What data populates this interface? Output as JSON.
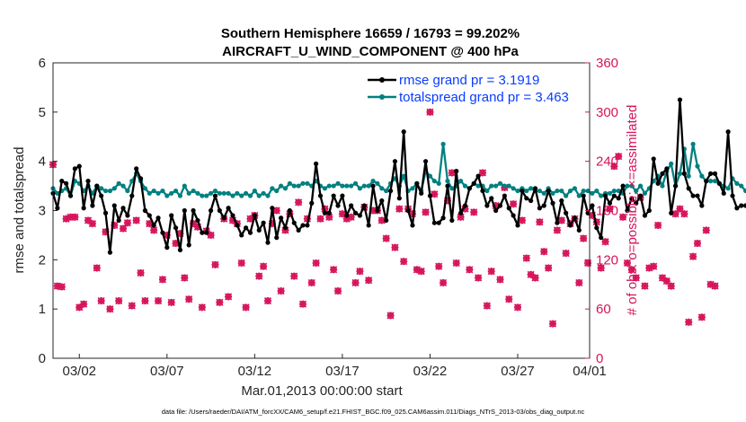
{
  "chart_data": {
    "type": "line",
    "title_line1": "Southern Hemisphere 16659 / 16793 = 99.202%",
    "title_line2": "AIRCRAFT_U_WIND_COMPONENT @ 400 hPa",
    "xlabel": "Mar.01,2013 00:00:00 start",
    "ylabel_left": "rmse and totalspread",
    "ylabel_right": "# of obs: o=possible; ×=assimilated",
    "xlim": [
      0.5,
      31.1
    ],
    "ylim_left": [
      0,
      6
    ],
    "ylim_right": [
      0,
      360
    ],
    "x_ticks": [
      {
        "value": 2,
        "label": "03/02"
      },
      {
        "value": 7,
        "label": "03/07"
      },
      {
        "value": 12,
        "label": "03/12"
      },
      {
        "value": 17,
        "label": "03/17"
      },
      {
        "value": 22,
        "label": "03/22"
      },
      {
        "value": 27,
        "label": "03/27"
      },
      {
        "value": 32,
        "label": "04/01"
      }
    ],
    "y_ticks_left": [
      "0",
      "1",
      "2",
      "3",
      "4",
      "5",
      "6"
    ],
    "y_ticks_right": [
      "0",
      "60",
      "120",
      "180",
      "240",
      "300",
      "360"
    ],
    "footer": "data file: /Users/raeder/DAI/ATM_forcXX/CAM6_setup/f.e21.FHIST_BGC.f09_025.CAM6assim.011/Diags_NTrS_2013-03/obs_diag_output.nc",
    "colors": {
      "rmse": "#000000",
      "totalspread": "#008080",
      "obs": "#d6145b",
      "legend_text": "#0a3cff",
      "axis": "#262626"
    },
    "series": [
      {
        "name": "rmse grand pr = 3.1919",
        "axis": "left",
        "x_start": 0.5,
        "x_step": 0.25,
        "values": [
          3.35,
          3.05,
          3.6,
          3.55,
          3.3,
          3.85,
          3.9,
          3.05,
          3.6,
          3.1,
          3.5,
          3.3,
          2.95,
          2.15,
          3.1,
          2.8,
          3.05,
          2.9,
          3.3,
          3.85,
          3.65,
          3.0,
          2.9,
          2.7,
          2.85,
          2.55,
          2.25,
          2.9,
          2.65,
          2.2,
          3.0,
          2.3,
          3.0,
          2.8,
          2.55,
          2.55,
          3.0,
          3.3,
          3.0,
          2.85,
          3.05,
          2.9,
          2.7,
          2.5,
          2.65,
          2.55,
          2.9,
          2.6,
          2.75,
          2.35,
          3.05,
          2.45,
          2.85,
          2.65,
          3.0,
          2.75,
          2.6,
          2.7,
          2.7,
          3.15,
          3.95,
          3.3,
          2.95,
          2.95,
          3.3,
          3.1,
          3.3,
          2.9,
          3.1,
          2.95,
          2.9,
          3.1,
          2.7,
          3.5,
          3.0,
          3.2,
          2.8,
          3.4,
          4.0,
          3.25,
          4.6,
          3.0,
          2.7,
          3.55,
          3.35,
          4.0,
          3.3,
          2.75,
          2.75,
          2.85,
          3.5,
          2.8,
          3.8,
          2.95,
          3.1,
          3.45,
          3.55,
          3.7,
          3.4,
          3.1,
          3.25,
          3.0,
          3.1,
          3.3,
          3.05,
          2.9,
          2.7,
          3.4,
          3.25,
          3.2,
          3.45,
          3.05,
          3.1,
          3.4,
          3.15,
          2.75,
          3.2,
          2.95,
          2.7,
          2.85,
          2.6,
          3.3,
          2.95,
          3.1,
          2.65,
          2.45,
          3.3,
          3.15,
          3.3,
          3.25,
          3.5,
          3.0,
          3.25,
          3.15,
          3.3,
          2.9,
          3.0,
          4.05,
          3.55,
          3.75,
          3.85,
          2.95,
          3.5,
          5.25,
          3.75,
          3.45,
          3.3,
          3.3,
          3.1,
          3.6,
          3.75,
          3.75,
          3.55,
          3.35,
          4.6,
          3.3,
          3.05,
          3.1,
          3.1
        ],
        "marker": "dot"
      },
      {
        "name": "totalspread grand pr = 3.463",
        "axis": "left",
        "x_start": 0.5,
        "x_step": 0.25,
        "values": [
          3.45,
          3.35,
          3.4,
          3.45,
          3.3,
          3.6,
          3.55,
          3.4,
          3.5,
          3.35,
          3.5,
          3.45,
          3.4,
          3.4,
          3.45,
          3.55,
          3.5,
          3.4,
          3.6,
          3.75,
          3.6,
          3.45,
          3.35,
          3.4,
          3.35,
          3.4,
          3.3,
          3.35,
          3.4,
          3.3,
          3.5,
          3.35,
          3.4,
          3.35,
          3.3,
          3.3,
          3.35,
          3.4,
          3.35,
          3.35,
          3.35,
          3.3,
          3.35,
          3.3,
          3.35,
          3.3,
          3.4,
          3.3,
          3.35,
          3.3,
          3.45,
          3.4,
          3.5,
          3.45,
          3.55,
          3.5,
          3.5,
          3.55,
          3.55,
          3.5,
          3.6,
          3.5,
          3.45,
          3.5,
          3.5,
          3.55,
          3.5,
          3.5,
          3.5,
          3.55,
          3.45,
          3.5,
          3.5,
          3.6,
          3.55,
          3.45,
          3.4,
          3.55,
          3.65,
          3.5,
          3.7,
          3.4,
          3.45,
          3.55,
          3.4,
          3.8,
          3.7,
          3.6,
          3.55,
          4.35,
          3.6,
          3.45,
          3.5,
          3.6,
          3.5,
          3.45,
          3.55,
          3.5,
          3.5,
          3.4,
          3.5,
          3.5,
          3.55,
          3.5,
          3.5,
          3.45,
          3.4,
          3.45,
          3.4,
          3.45,
          3.4,
          3.4,
          3.35,
          3.45,
          3.35,
          3.4,
          3.4,
          3.3,
          3.4,
          3.45,
          3.3,
          3.4,
          3.4,
          3.35,
          3.4,
          3.3,
          3.35,
          3.35,
          3.4,
          3.4,
          3.35,
          3.5,
          3.5,
          3.4,
          3.5,
          3.35,
          3.45,
          3.6,
          3.7,
          3.5,
          3.8,
          3.95,
          3.5,
          3.75,
          4.25,
          3.7,
          4.35,
          3.9,
          3.7,
          3.6,
          3.6,
          3.6,
          3.55,
          3.5,
          3.45,
          3.65,
          3.55,
          3.5,
          3.4
        ],
        "marker": "dot"
      },
      {
        "name": "obs possible",
        "axis": "right",
        "x_start": 0.5,
        "x_step": 0.25,
        "values": [
          236,
          88,
          87,
          170,
          172,
          172,
          62,
          66,
          168,
          164,
          110,
          70,
          154,
          60,
          162,
          70,
          158,
          165,
          64,
          168,
          104,
          70,
          164,
          156,
          70,
          96,
          150,
          68,
          140,
          152,
          98,
          72,
          164,
          160,
          62,
          155,
          150,
          114,
          68,
          170,
          75,
          168,
          164,
          116,
          62,
          170,
          174,
          100,
          112,
          70,
          164,
          180,
          82,
          156,
          176,
          100,
          190,
          66,
          170,
          92,
          116,
          170,
          182,
          172,
          108,
          82,
          176,
          170,
          172,
          92,
          106,
          184,
          95,
          180,
          180,
          168,
          146,
          52,
          135,
          182,
          118,
          182,
          176,
          108,
          106,
          178,
          300,
          200,
          112,
          92,
          192,
          226,
          116,
          172,
          182,
          108,
          178,
          98,
          226,
          64,
          106,
          186,
          96,
          208,
          72,
          188,
          62,
          168,
          122,
          102,
          98,
          166,
          130,
          110,
          42,
          156,
          168,
          128,
          164,
          170,
          92,
          146,
          116,
          174,
          166,
          110,
          142,
          182,
          234,
          246,
          172,
          116,
          108,
          98,
          196,
          88,
          110,
          112,
          162,
          98,
          94,
          88,
          176,
          182,
          176,
          44,
          124,
          140,
          50,
          156,
          90,
          88
        ],
        "marker": "circle"
      },
      {
        "name": "obs assimilated",
        "axis": "right",
        "x_start": 0.5,
        "x_step": 0.25,
        "values": [
          236,
          88,
          87,
          170,
          172,
          172,
          62,
          66,
          168,
          164,
          110,
          70,
          154,
          60,
          162,
          70,
          158,
          165,
          64,
          168,
          104,
          70,
          164,
          156,
          70,
          96,
          150,
          68,
          140,
          152,
          98,
          72,
          164,
          160,
          62,
          155,
          150,
          114,
          68,
          170,
          75,
          168,
          164,
          116,
          62,
          170,
          174,
          100,
          112,
          70,
          164,
          180,
          82,
          156,
          176,
          100,
          190,
          66,
          170,
          92,
          116,
          170,
          182,
          172,
          108,
          82,
          176,
          170,
          172,
          92,
          106,
          184,
          95,
          180,
          180,
          168,
          146,
          52,
          135,
          182,
          118,
          182,
          176,
          108,
          106,
          178,
          300,
          200,
          112,
          92,
          192,
          226,
          116,
          172,
          182,
          108,
          178,
          98,
          226,
          64,
          106,
          186,
          96,
          208,
          72,
          188,
          62,
          168,
          122,
          102,
          98,
          166,
          130,
          110,
          42,
          156,
          168,
          128,
          164,
          170,
          92,
          146,
          116,
          174,
          166,
          110,
          142,
          182,
          234,
          246,
          172,
          116,
          108,
          98,
          196,
          88,
          110,
          112,
          162,
          98,
          94,
          88,
          176,
          182,
          176,
          44,
          124,
          140,
          50,
          156,
          90,
          88
        ],
        "marker": "x"
      }
    ]
  }
}
